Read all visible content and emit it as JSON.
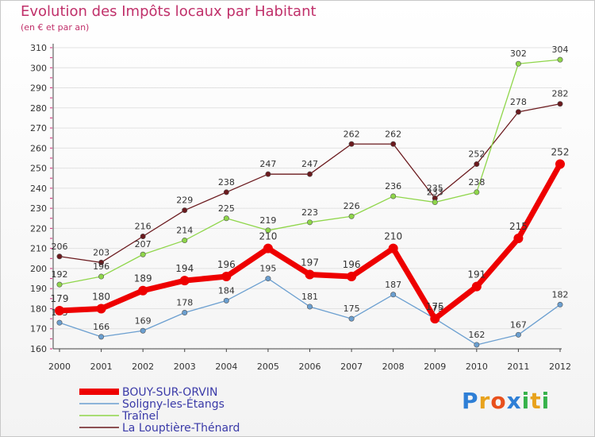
{
  "header": {
    "title": "Evolution des Impôts locaux par Habitant",
    "subtitle": "(en € et par an)"
  },
  "logo": {
    "text": "Proxiti",
    "letters": [
      "P",
      "r",
      "o",
      "x",
      "i",
      "t",
      "i"
    ],
    "colors": [
      "#2e7fd6",
      "#e8a21c",
      "#e8501c",
      "#2e7fd6",
      "#36b24a",
      "#e8a21c",
      "#36b24a"
    ]
  },
  "chart_data": {
    "type": "line",
    "title": "Evolution des Impôts locaux par Habitant",
    "subtitle": "(en € et par an)",
    "xlabel": "",
    "ylabel": "",
    "ylim": [
      160,
      310
    ],
    "yticks": [
      160,
      170,
      180,
      190,
      200,
      210,
      220,
      230,
      240,
      250,
      260,
      270,
      280,
      290,
      300,
      310
    ],
    "categories": [
      "2000",
      "2001",
      "2002",
      "2003",
      "2004",
      "2005",
      "2006",
      "2007",
      "2008",
      "2009",
      "2010",
      "2011",
      "2012"
    ],
    "series": [
      {
        "name": "La Louptière-Thénard",
        "color": "#6b1a1e",
        "values": [
          206,
          203,
          216,
          229,
          238,
          247,
          247,
          262,
          262,
          235,
          252,
          278,
          282
        ]
      },
      {
        "name": "Traînel",
        "color": "#8fd64a",
        "values": [
          192,
          196,
          207,
          214,
          225,
          219,
          223,
          226,
          236,
          233,
          238,
          302,
          304
        ]
      },
      {
        "name": "Soligny-les-Étangs",
        "color": "#6b9fd0",
        "values": [
          173,
          166,
          169,
          178,
          184,
          195,
          181,
          175,
          187,
          175,
          162,
          167,
          182
        ]
      },
      {
        "name": "BOUY-SUR-ORVIN",
        "color": "#ee0000",
        "values": [
          179,
          180,
          189,
          194,
          196,
          210,
          197,
          196,
          210,
          175,
          191,
          215,
          252
        ]
      }
    ],
    "legend": {
      "position": "bottom-left",
      "entries": [
        "BOUY-SUR-ORVIN",
        "Soligny-les-Étangs",
        "Traînel",
        "La Louptière-Thénard"
      ]
    }
  }
}
